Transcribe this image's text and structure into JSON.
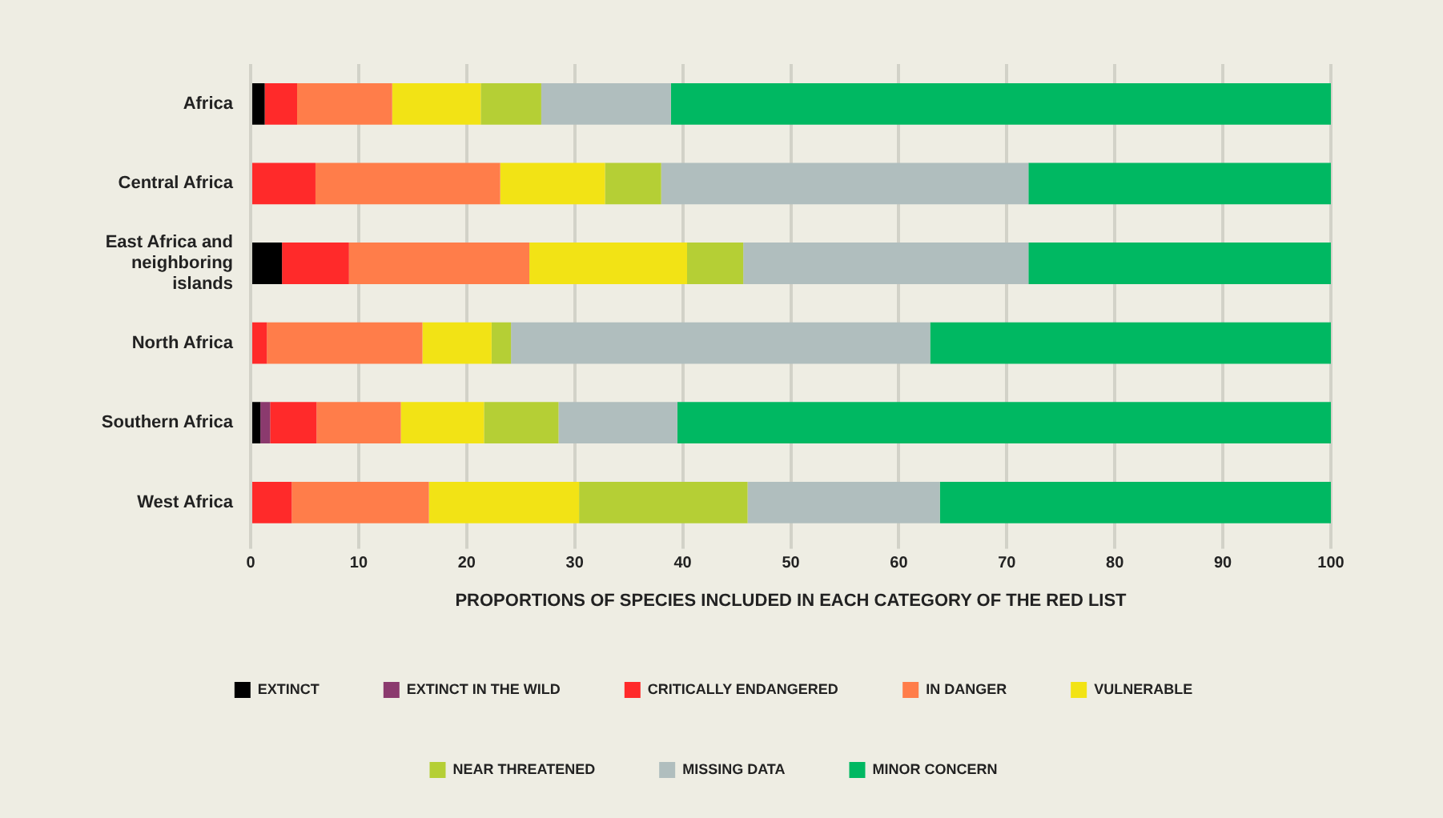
{
  "chart_data": {
    "type": "bar",
    "orientation": "horizontal",
    "stacked": true,
    "xlabel": "PROPORTIONS OF SPECIES INCLUDED IN EACH CATEGORY OF THE RED LIST",
    "categories": [
      "Africa",
      "Central Africa",
      "East Africa and neighboring islands",
      "North Africa",
      "Southern Africa",
      "West Africa"
    ],
    "xlim": [
      0,
      100
    ],
    "xticks": [
      0,
      10,
      20,
      30,
      40,
      50,
      60,
      70,
      80,
      90,
      100
    ],
    "grid": "x",
    "legend": "bottom",
    "series": [
      {
        "name": "EXTINCT",
        "color": "#000000",
        "values": [
          1.3,
          0,
          2.9,
          0,
          0.9,
          0
        ]
      },
      {
        "name": "EXTINCT IN THE WILD",
        "color": "#8b3a6e",
        "values": [
          0,
          0,
          0,
          0,
          0.9,
          0
        ]
      },
      {
        "name": "CRITICALLY ENDANGERED",
        "color": "#ff2a2a",
        "values": [
          3.0,
          6.0,
          6.2,
          1.5,
          4.3,
          3.8
        ]
      },
      {
        "name": "IN DANGER",
        "color": "#ff7d4a",
        "values": [
          8.8,
          17.1,
          16.7,
          14.4,
          7.8,
          12.7
        ]
      },
      {
        "name": "VULNERABLE",
        "color": "#f2e315",
        "values": [
          8.2,
          9.7,
          14.6,
          6.4,
          7.7,
          13.9
        ]
      },
      {
        "name": "NEAR THREATENED",
        "color": "#b5cf35",
        "values": [
          5.6,
          5.2,
          5.2,
          1.8,
          6.9,
          15.6
        ]
      },
      {
        "name": "MISSING DATA",
        "color": "#b0bebe",
        "values": [
          12.0,
          34.0,
          26.4,
          38.8,
          11.0,
          17.8
        ]
      },
      {
        "name": "MINOR CONCERN",
        "color": "#00b862",
        "values": [
          61.1,
          28.0,
          28.0,
          37.1,
          60.5,
          36.2
        ]
      }
    ]
  }
}
